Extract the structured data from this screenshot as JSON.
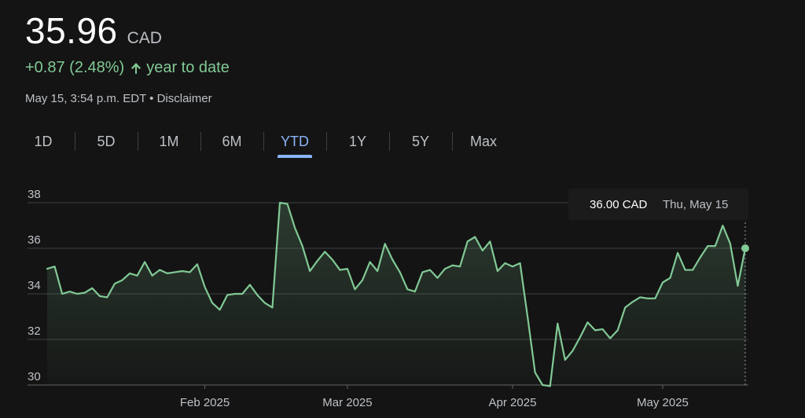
{
  "quote": {
    "price": "35.96",
    "currency": "CAD",
    "change": "+0.87 (2.48%)",
    "change_period": "year to date",
    "timestamp": "May 15, 3:54 p.m. EDT",
    "separator": "•",
    "disclaimer_label": "Disclaimer"
  },
  "tabs": [
    {
      "label": "1D"
    },
    {
      "label": "5D"
    },
    {
      "label": "1M"
    },
    {
      "label": "6M"
    },
    {
      "label": "YTD"
    },
    {
      "label": "1Y"
    },
    {
      "label": "5Y"
    },
    {
      "label": "Max"
    }
  ],
  "active_tab": "YTD",
  "colors": {
    "background": "#141414",
    "line": "#81c995",
    "accent_tab": "#8ab4f8",
    "gridline": "#3c4043",
    "text_primary": "#ffffff",
    "text_secondary": "#bdc1c6"
  },
  "tooltip": {
    "value": "36.00 CAD",
    "date": "Thu, May 15"
  },
  "chart_data": {
    "type": "area",
    "ylim": [
      30,
      38
    ],
    "yticks": [
      30,
      32,
      34,
      36,
      38
    ],
    "x_tick_labels": [
      "Feb 2025",
      "Mar 2025",
      "Apr 2025",
      "May 2025"
    ],
    "x_tick_positions": [
      21,
      40,
      62,
      82
    ],
    "grid": true,
    "last_value": 36.0,
    "values": [
      35.1,
      35.2,
      34.0,
      34.1,
      34.0,
      34.05,
      34.25,
      33.9,
      33.85,
      34.45,
      34.6,
      34.9,
      34.8,
      35.4,
      34.8,
      35.05,
      34.9,
      34.95,
      35.0,
      34.95,
      35.3,
      34.3,
      33.6,
      33.3,
      33.95,
      34.0,
      34.0,
      34.4,
      33.95,
      33.6,
      33.4,
      38.0,
      37.95,
      36.9,
      36.1,
      35.0,
      35.45,
      35.85,
      35.5,
      35.05,
      35.1,
      34.2,
      34.6,
      35.4,
      35.0,
      36.2,
      35.5,
      34.95,
      34.2,
      34.1,
      34.95,
      35.05,
      34.7,
      35.1,
      35.25,
      35.2,
      36.3,
      36.5,
      35.9,
      36.3,
      35.0,
      35.35,
      35.2,
      35.35,
      33.0,
      30.55,
      30.0,
      29.95,
      32.7,
      31.1,
      31.5,
      32.1,
      32.75,
      32.4,
      32.45,
      32.05,
      32.4,
      33.4,
      33.65,
      33.85,
      33.8,
      33.8,
      34.5,
      34.7,
      35.8,
      35.05,
      35.05,
      35.6,
      36.1,
      36.1,
      37.0,
      36.2,
      34.35,
      36.0
    ]
  }
}
